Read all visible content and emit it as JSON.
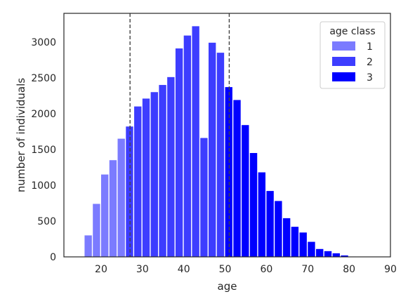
{
  "chart_data": {
    "type": "bar",
    "title": "",
    "xlabel": "age",
    "ylabel": "number of individuals",
    "xlim": [
      11,
      90
    ],
    "ylim": [
      0,
      3400
    ],
    "x_ticks": [
      20,
      30,
      40,
      50,
      60,
      70,
      80,
      90
    ],
    "y_ticks": [
      0,
      500,
      1000,
      1500,
      2000,
      2500,
      3000
    ],
    "bin_width": 2,
    "vlines": [
      27,
      51
    ],
    "legend": {
      "title": "age class",
      "position": "top-right"
    },
    "series": [
      {
        "name": "1",
        "color": "#7b7bff",
        "x": [
          17,
          19,
          21,
          23,
          25
        ],
        "values": [
          300,
          740,
          1150,
          1350,
          1650
        ]
      },
      {
        "name": "2",
        "color": "#3d3dff",
        "x": [
          27,
          29,
          31,
          33,
          35,
          37,
          39,
          41,
          43,
          45,
          47,
          49
        ],
        "values": [
          1820,
          2100,
          2210,
          2300,
          2400,
          2510,
          2910,
          3090,
          3220,
          1660,
          2990,
          2850
        ]
      },
      {
        "name": "3",
        "color": "#0000ff",
        "x": [
          51,
          53,
          55,
          57,
          59,
          61,
          63,
          65,
          67,
          69,
          71,
          73,
          75,
          77,
          79,
          81
        ],
        "values": [
          2370,
          2190,
          1840,
          1450,
          1180,
          920,
          780,
          540,
          420,
          340,
          210,
          110,
          80,
          50,
          20,
          5
        ]
      }
    ]
  }
}
